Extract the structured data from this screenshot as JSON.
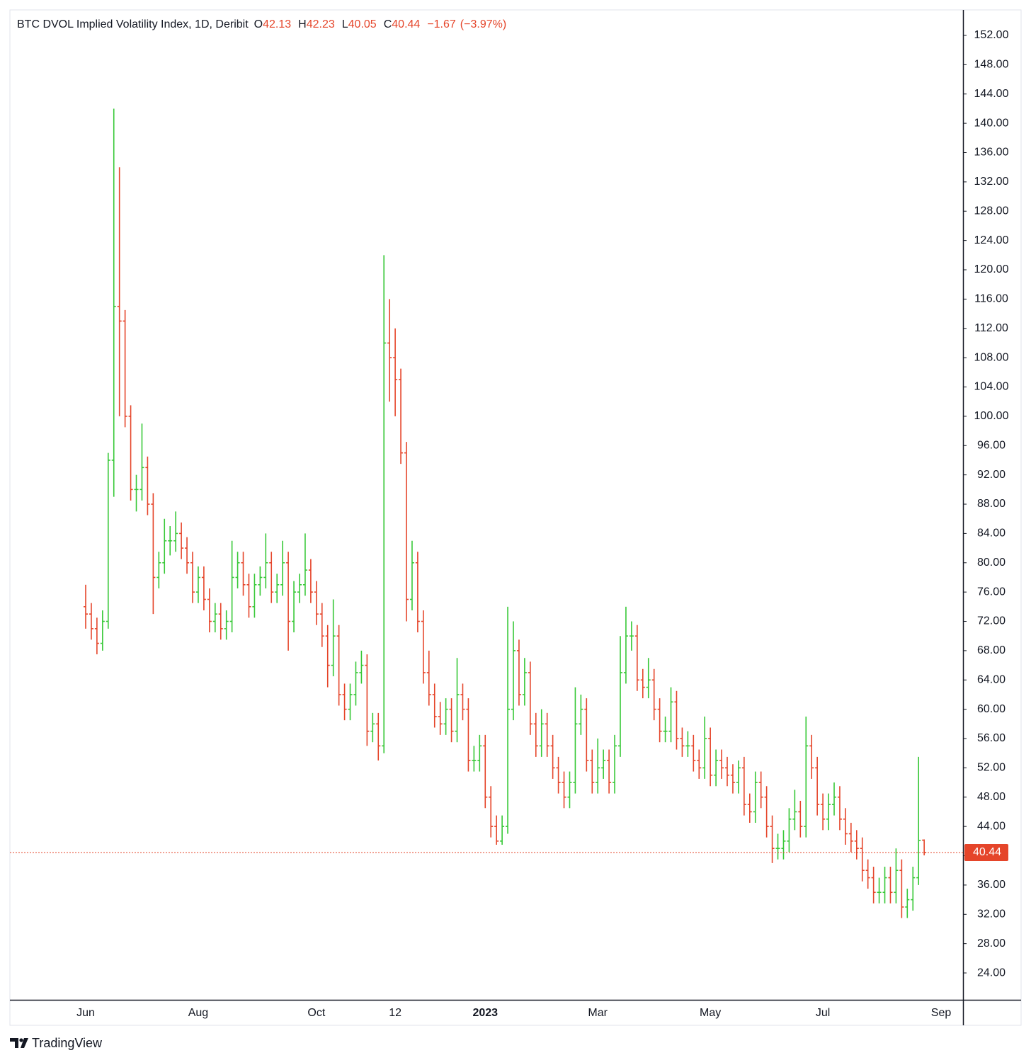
{
  "chart_data": {
    "type": "ohlc",
    "title": "BTC DVOL Implied Volatility Index, 1D, Deribit",
    "ohlc_labels": [
      "O",
      "H",
      "L",
      "C"
    ],
    "change": {
      "value": -1.67,
      "label": "−1.67"
    },
    "change_pct": {
      "value": -3.97,
      "label": "(−3.97%)"
    },
    "brand": "TradingView",
    "up_color": "#37c837",
    "down_color": "#e5452a",
    "categories": [
      "Jun",
      null,
      null,
      null,
      null,
      null,
      null,
      null,
      null,
      null,
      null,
      null,
      null,
      null,
      null,
      null,
      null,
      null,
      null,
      null,
      "Aug",
      null,
      null,
      null,
      null,
      null,
      null,
      null,
      null,
      null,
      null,
      null,
      null,
      null,
      null,
      null,
      null,
      null,
      null,
      null,
      null,
      "Oct",
      null,
      null,
      null,
      null,
      null,
      null,
      null,
      null,
      null,
      null,
      null,
      null,
      null,
      "12",
      null,
      null,
      null,
      null,
      null,
      null,
      null,
      null,
      null,
      null,
      null,
      null,
      null,
      null,
      null,
      "2023",
      null,
      null,
      null,
      null,
      null,
      null,
      null,
      null,
      null,
      null,
      null,
      null,
      null,
      null,
      null,
      null,
      null,
      null,
      null,
      "Mar",
      null,
      null,
      null,
      null,
      null,
      null,
      null,
      null,
      null,
      null,
      null,
      null,
      null,
      null,
      null,
      null,
      null,
      null,
      null,
      "May",
      null,
      null,
      null,
      null,
      null,
      null,
      null,
      null,
      null,
      null,
      null,
      null,
      null,
      null,
      null,
      null,
      null,
      null,
      null,
      "Jul",
      null,
      null,
      null,
      null,
      null,
      null,
      null,
      null,
      null,
      null,
      null,
      null,
      null,
      null,
      null,
      null,
      null,
      null,
      null,
      null,
      "Sep"
    ],
    "values": [
      [
        74,
        77,
        71,
        73
      ],
      [
        73,
        74.5,
        69.5,
        71
      ],
      [
        71,
        72.5,
        67.5,
        69
      ],
      [
        69,
        73.5,
        68,
        72
      ],
      [
        72,
        95,
        71,
        94
      ],
      [
        94,
        142,
        89,
        115
      ],
      [
        115,
        134,
        100,
        113
      ],
      [
        113,
        114.5,
        98.5,
        100
      ],
      [
        100,
        101.5,
        88.5,
        90
      ],
      [
        90,
        92,
        87,
        90
      ],
      [
        90,
        99,
        88.5,
        93
      ],
      [
        93,
        94.5,
        86.5,
        88
      ],
      [
        88,
        89.5,
        73,
        78
      ],
      [
        78,
        81.5,
        76.5,
        80
      ],
      [
        80,
        86,
        78.5,
        83
      ],
      [
        83,
        85,
        81,
        83
      ],
      [
        83,
        87,
        81.5,
        84
      ],
      [
        84,
        85.5,
        80.5,
        82
      ],
      [
        82,
        83.5,
        78.5,
        80
      ],
      [
        80,
        81.5,
        74.5,
        76
      ],
      [
        76,
        79.5,
        74.5,
        78
      ],
      [
        78,
        79.5,
        73.5,
        75
      ],
      [
        75,
        76.5,
        70.5,
        72
      ],
      [
        72,
        74.5,
        70.5,
        73
      ],
      [
        73,
        74.5,
        69.5,
        71
      ],
      [
        71,
        73.5,
        69.5,
        72
      ],
      [
        72,
        83,
        70.5,
        78
      ],
      [
        78,
        81.5,
        76.5,
        80
      ],
      [
        80,
        81.5,
        75.5,
        77
      ],
      [
        77,
        78.5,
        72.5,
        74
      ],
      [
        74,
        78.5,
        72.5,
        77
      ],
      [
        77,
        79.5,
        75.5,
        78
      ],
      [
        78,
        84,
        76.5,
        80
      ],
      [
        80,
        81.5,
        74.5,
        76
      ],
      [
        76,
        78.5,
        74.5,
        77
      ],
      [
        77,
        83,
        75.5,
        80
      ],
      [
        80,
        81.5,
        68,
        72
      ],
      [
        72,
        77.5,
        70.5,
        76
      ],
      [
        76,
        78.5,
        74.5,
        77
      ],
      [
        77,
        84,
        75.5,
        79
      ],
      [
        79,
        80.5,
        74.5,
        76
      ],
      [
        76,
        77.5,
        71.5,
        73
      ],
      [
        73,
        74.5,
        68.5,
        70
      ],
      [
        70,
        71.5,
        63,
        66
      ],
      [
        66,
        75,
        64.5,
        70
      ],
      [
        70,
        71.5,
        60.5,
        62
      ],
      [
        62,
        63.5,
        58.5,
        60
      ],
      [
        60,
        63.5,
        58.5,
        62
      ],
      [
        62,
        66.5,
        60.5,
        65
      ],
      [
        65,
        68,
        63.5,
        66
      ],
      [
        66,
        67.5,
        55,
        57
      ],
      [
        57,
        59.5,
        55.5,
        58
      ],
      [
        58,
        59.5,
        53,
        55
      ],
      [
        55,
        122,
        54,
        110
      ],
      [
        110,
        116,
        102,
        108
      ],
      [
        108,
        112,
        100,
        105
      ],
      [
        105,
        106.5,
        93.5,
        95
      ],
      [
        95,
        96.5,
        72,
        75
      ],
      [
        75,
        83,
        73.5,
        80
      ],
      [
        80,
        81.5,
        70.5,
        72
      ],
      [
        72,
        73.5,
        63.5,
        65
      ],
      [
        65,
        68,
        60.5,
        62
      ],
      [
        62,
        63.5,
        57.5,
        59
      ],
      [
        59,
        61,
        56.5,
        58
      ],
      [
        58,
        61.5,
        56.5,
        60
      ],
      [
        60,
        61.5,
        55.5,
        57
      ],
      [
        57,
        67,
        55.5,
        62
      ],
      [
        62,
        63.5,
        58.5,
        60
      ],
      [
        60,
        61.5,
        51.5,
        53
      ],
      [
        53,
        55,
        51.5,
        53
      ],
      [
        53,
        56.5,
        51.5,
        55
      ],
      [
        55,
        56.5,
        46.5,
        48
      ],
      [
        48,
        49.5,
        42.5,
        44
      ],
      [
        44,
        45.5,
        41.5,
        42
      ],
      [
        42,
        45.5,
        41.5,
        44
      ],
      [
        44,
        74,
        43,
        60
      ],
      [
        60,
        72,
        58.5,
        68
      ],
      [
        68,
        69.5,
        60.5,
        62
      ],
      [
        62,
        67,
        60.5,
        65
      ],
      [
        65,
        66.5,
        56.5,
        58
      ],
      [
        58,
        59.5,
        53.5,
        55
      ],
      [
        55,
        60,
        53.5,
        58
      ],
      [
        58,
        59.5,
        53.5,
        55
      ],
      [
        55,
        56.5,
        50.5,
        52
      ],
      [
        52,
        53.5,
        48.5,
        50
      ],
      [
        50,
        51.5,
        46.5,
        48
      ],
      [
        48,
        51.5,
        46.5,
        50
      ],
      [
        50,
        63,
        48.5,
        58
      ],
      [
        58,
        62,
        56.5,
        60
      ],
      [
        60,
        61.5,
        51.5,
        53
      ],
      [
        53,
        54.5,
        48.5,
        50
      ],
      [
        50,
        56,
        48.5,
        52
      ],
      [
        52,
        54.5,
        50.5,
        53
      ],
      [
        53,
        54.5,
        48.5,
        50
      ],
      [
        50,
        56.5,
        48.5,
        55
      ],
      [
        55,
        70,
        53.5,
        65
      ],
      [
        65,
        74,
        63.5,
        70
      ],
      [
        70,
        72,
        68,
        70
      ],
      [
        70,
        71.5,
        62.5,
        64
      ],
      [
        64,
        65.5,
        61.5,
        63
      ],
      [
        63,
        67,
        61.5,
        64
      ],
      [
        64,
        65.5,
        58.5,
        60
      ],
      [
        60,
        61.5,
        55.5,
        57
      ],
      [
        57,
        59,
        55.5,
        57
      ],
      [
        57,
        63,
        55.5,
        61
      ],
      [
        61,
        62.5,
        54.5,
        56
      ],
      [
        56,
        57.5,
        53.5,
        55
      ],
      [
        55,
        57,
        53.5,
        55
      ],
      [
        55,
        56.5,
        51.5,
        53
      ],
      [
        53,
        54.5,
        50.5,
        52
      ],
      [
        52,
        59,
        50.5,
        56
      ],
      [
        56,
        57.5,
        49.5,
        51
      ],
      [
        51,
        54.5,
        49.5,
        53
      ],
      [
        53,
        54.5,
        50.5,
        52
      ],
      [
        52,
        53.5,
        49.5,
        51
      ],
      [
        51,
        52.5,
        48.5,
        50
      ],
      [
        50,
        53,
        48.5,
        52
      ],
      [
        52,
        53.5,
        45.5,
        47
      ],
      [
        47,
        48.5,
        44.5,
        46
      ],
      [
        46,
        51.5,
        44.5,
        50
      ],
      [
        50,
        51.5,
        46.5,
        48
      ],
      [
        48,
        49.5,
        42.5,
        44
      ],
      [
        44,
        45.5,
        39,
        41
      ],
      [
        41,
        43,
        39.5,
        41
      ],
      [
        41,
        43.5,
        39.5,
        42
      ],
      [
        42,
        46.5,
        40.5,
        45
      ],
      [
        45,
        49,
        43.5,
        46
      ],
      [
        46,
        47.5,
        42.5,
        44
      ],
      [
        44,
        59,
        42.5,
        55
      ],
      [
        55,
        56.5,
        50.5,
        52
      ],
      [
        52,
        53.5,
        45.5,
        47
      ],
      [
        47,
        48.5,
        43.5,
        45
      ],
      [
        45,
        48.5,
        43.5,
        47
      ],
      [
        47,
        50,
        45.5,
        48
      ],
      [
        48,
        49.5,
        43.5,
        45
      ],
      [
        45,
        46.5,
        41.5,
        43
      ],
      [
        43,
        44.5,
        40.5,
        42
      ],
      [
        42,
        43.5,
        39.5,
        41
      ],
      [
        41,
        42.5,
        36.5,
        38
      ],
      [
        38,
        39.5,
        35.5,
        37
      ],
      [
        37,
        38.5,
        33.5,
        35
      ],
      [
        35,
        37,
        33.5,
        35
      ],
      [
        35,
        38.5,
        33.5,
        37
      ],
      [
        37,
        38.5,
        33.5,
        35
      ],
      [
        35,
        41,
        33.5,
        38
      ],
      [
        38,
        39.5,
        31.5,
        33
      ],
      [
        33,
        35.5,
        31.5,
        34
      ],
      [
        34,
        38.5,
        32.5,
        37
      ],
      [
        37,
        53.5,
        36,
        42.1
      ],
      [
        42.13,
        42.23,
        40.05,
        40.44
      ],
      null,
      null,
      null
    ],
    "ylim": [
      20.33,
      155.48
    ],
    "yticks": [
      {
        "value": 24,
        "label": "24.00"
      },
      {
        "value": 28,
        "label": "28.00"
      },
      {
        "value": 32,
        "label": "32.00"
      },
      {
        "value": 36,
        "label": "36.00"
      },
      {
        "value": 40,
        "label": "40.00"
      },
      {
        "value": 44,
        "label": "44.00"
      },
      {
        "value": 48,
        "label": "48.00"
      },
      {
        "value": 52,
        "label": "52.00"
      },
      {
        "value": 56,
        "label": "56.00"
      },
      {
        "value": 60,
        "label": "60.00"
      },
      {
        "value": 64,
        "label": "64.00"
      },
      {
        "value": 68,
        "label": "68.00"
      },
      {
        "value": 72,
        "label": "72.00"
      },
      {
        "value": 76,
        "label": "76.00"
      },
      {
        "value": 80,
        "label": "80.00"
      },
      {
        "value": 84,
        "label": "84.00"
      },
      {
        "value": 88,
        "label": "88.00"
      },
      {
        "value": 92,
        "label": "92.00"
      },
      {
        "value": 96,
        "label": "96.00"
      },
      {
        "value": 100,
        "label": "100.00"
      },
      {
        "value": 104,
        "label": "104.00"
      },
      {
        "value": 108,
        "label": "108.00"
      },
      {
        "value": 112,
        "label": "112.00"
      },
      {
        "value": 116,
        "label": "116.00"
      },
      {
        "value": 120,
        "label": "120.00"
      },
      {
        "value": 124,
        "label": "124.00"
      },
      {
        "value": 128,
        "label": "128.00"
      },
      {
        "value": 132,
        "label": "132.00"
      },
      {
        "value": 136,
        "label": "136.00"
      },
      {
        "value": 140,
        "label": "140.00"
      },
      {
        "value": 144,
        "label": "144.00"
      },
      {
        "value": 148,
        "label": "148.00"
      },
      {
        "value": 152,
        "label": "152.00"
      }
    ],
    "grid": false
  }
}
